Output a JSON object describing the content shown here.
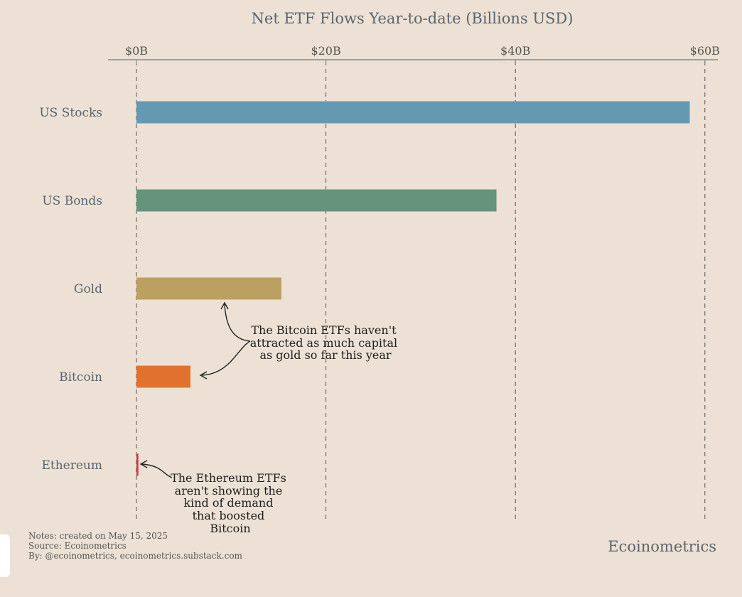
{
  "chart_data": {
    "type": "bar",
    "orientation": "horizontal",
    "title": "Net ETF Flows Year-to-date (Billions USD)",
    "categories": [
      "US Stocks",
      "US Bonds",
      "Gold",
      "Bitcoin",
      "Ethereum"
    ],
    "values": [
      58.4,
      38.0,
      15.3,
      5.7,
      0.2
    ],
    "colors": [
      "#6499b1",
      "#66937b",
      "#bba062",
      "#e1712f",
      "#c9364a"
    ],
    "xlim": [
      -3,
      61.5
    ],
    "xticks": [
      0,
      20,
      40,
      60
    ],
    "xtick_labels": [
      "$0B",
      "$20B",
      "$40B",
      "$60B"
    ],
    "xaxis_position": "top",
    "grid": "vertical dashed",
    "annotations": [
      {
        "target": "Bitcoin vs Gold",
        "lines": [
          "The Bitcoin ETFs haven't",
          "attracted as much capital",
          "as gold so far this year"
        ]
      },
      {
        "target": "Ethereum",
        "lines": [
          "The Ethereum ETFs",
          "aren't showing the",
          "kind of demand",
          "that boosted",
          "Bitcoin"
        ]
      }
    ]
  },
  "notes": [
    "Notes: created on May 15, 2025",
    "Source: Ecoinometrics",
    "By: @ecoinometrics, ecoinometrics.substack.com"
  ],
  "brand": "Ecoinometrics"
}
